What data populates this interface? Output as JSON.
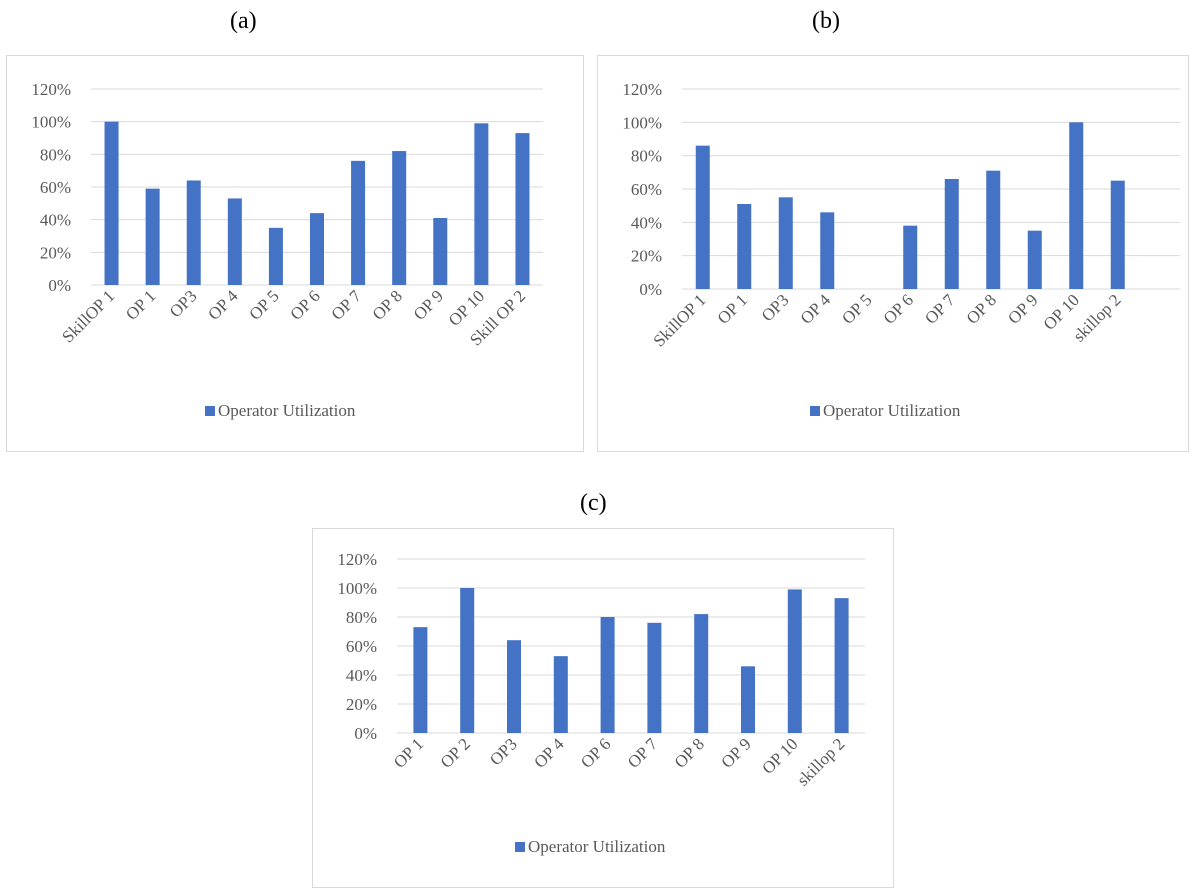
{
  "panels": [
    {
      "label": "(a)"
    },
    {
      "label": "(b)"
    },
    {
      "label": "(c)"
    }
  ],
  "colors": {
    "bar": "#4472c4",
    "grid": "#d9d9d9",
    "text": "#595959"
  },
  "chart_data": [
    {
      "type": "bar",
      "panel": "(a)",
      "title": "",
      "xlabel": "",
      "ylabel": "",
      "ylim": [
        0,
        1.2
      ],
      "yticks": [
        "0%",
        "20%",
        "40%",
        "60%",
        "80%",
        "100%",
        "120%"
      ],
      "categories": [
        "SkillOP 1",
        "OP 1",
        "OP3",
        "OP 4",
        "OP 5",
        "OP 6",
        "OP 7",
        "OP 8",
        "OP 9",
        "OP 10",
        "Skill OP 2"
      ],
      "series": [
        {
          "name": "Operator Utilization",
          "values": [
            1.0,
            0.59,
            0.64,
            0.53,
            0.35,
            0.44,
            0.76,
            0.82,
            0.41,
            0.99,
            0.93
          ]
        }
      ],
      "grid": true,
      "legend": "bottom"
    },
    {
      "type": "bar",
      "panel": "(b)",
      "title": "",
      "xlabel": "",
      "ylabel": "",
      "ylim": [
        0,
        1.2
      ],
      "yticks": [
        "0%",
        "20%",
        "40%",
        "60%",
        "80%",
        "100%",
        "120%"
      ],
      "categories": [
        "SkillOP 1",
        "OP 1",
        "OP3",
        "OP 4",
        "OP 5",
        "OP 6",
        "OP 7",
        "OP  8",
        "OP 9",
        "OP 10",
        "skillop 2",
        ""
      ],
      "series": [
        {
          "name": "Operator Utilization",
          "values": [
            0.86,
            0.51,
            0.55,
            0.46,
            0.0,
            0.38,
            0.66,
            0.71,
            0.35,
            1.0,
            0.65,
            null
          ]
        }
      ],
      "grid": true,
      "legend": "bottom"
    },
    {
      "type": "bar",
      "panel": "(c)",
      "title": "",
      "xlabel": "",
      "ylabel": "",
      "ylim": [
        0,
        1.2
      ],
      "yticks": [
        "0%",
        "20%",
        "40%",
        "60%",
        "80%",
        "100%",
        "120%"
      ],
      "categories": [
        "OP 1",
        "OP 2",
        "OP3",
        "OP 4",
        "OP 6",
        "OP 7",
        "OP  8",
        "OP 9",
        "OP 10",
        "skillop 2"
      ],
      "series": [
        {
          "name": "Operator Utilization",
          "values": [
            0.73,
            1.0,
            0.64,
            0.53,
            0.8,
            0.76,
            0.82,
            0.46,
            0.99,
            0.93
          ]
        }
      ],
      "grid": true,
      "legend": "bottom"
    }
  ]
}
